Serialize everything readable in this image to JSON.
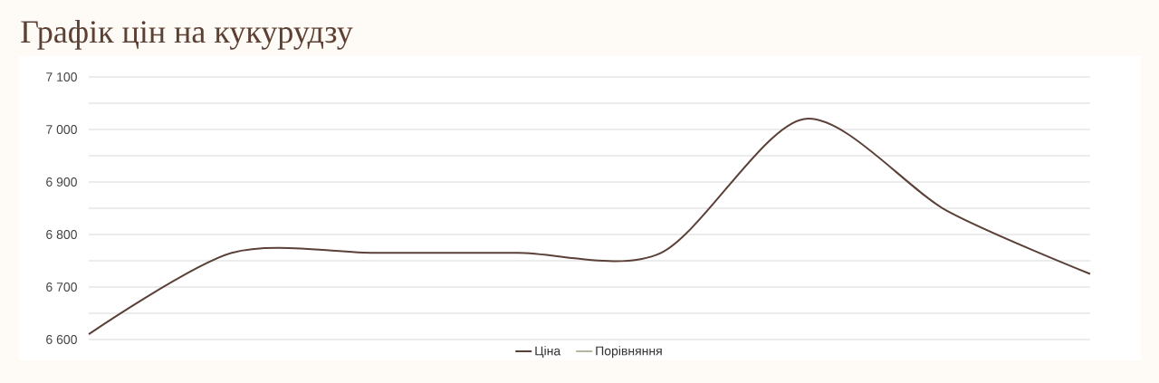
{
  "chart_data": {
    "type": "line",
    "title": "Графік цін на кукурудзу",
    "categories": [
      null,
      null,
      null,
      null,
      null,
      null,
      null,
      null
    ],
    "series": [
      {
        "name": "Ціна",
        "color": "#5b4038",
        "values": [
          6610,
          6765,
          6765,
          6765,
          6765,
          7020,
          6845,
          6725
        ]
      },
      {
        "name": "Порівняння",
        "color": "#b4b89e",
        "values": [
          null,
          null,
          null,
          null,
          null,
          null,
          null,
          null
        ]
      }
    ],
    "ylim": [
      6600,
      7100
    ],
    "yticks": [
      {
        "value": 6600,
        "label": "6 600"
      },
      {
        "value": 6650,
        "label": null
      },
      {
        "value": 6700,
        "label": "6 700"
      },
      {
        "value": 6750,
        "label": null
      },
      {
        "value": 6800,
        "label": "6 800"
      },
      {
        "value": 6850,
        "label": null
      },
      {
        "value": 6900,
        "label": "6 900"
      },
      {
        "value": 6950,
        "label": null
      },
      {
        "value": 7000,
        "label": "7 000"
      },
      {
        "value": 7050,
        "label": null
      },
      {
        "value": 7100,
        "label": "7 100"
      }
    ],
    "grid": "y",
    "legend": "bottom"
  }
}
